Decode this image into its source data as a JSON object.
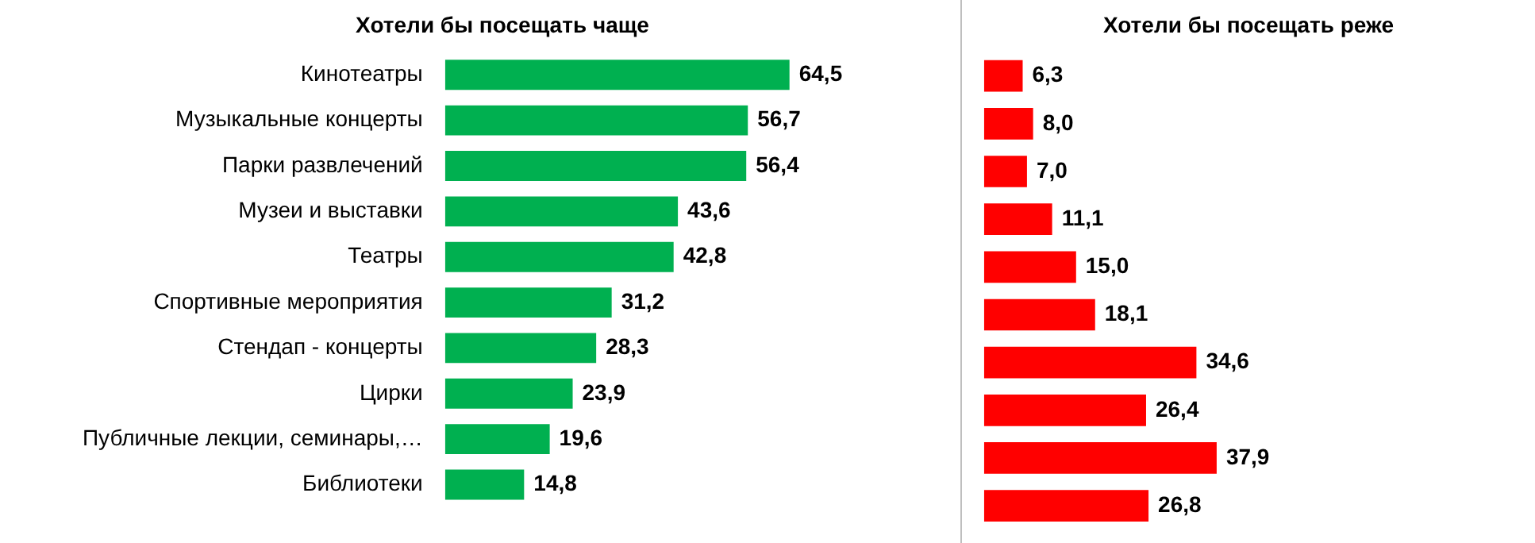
{
  "chart_data": [
    {
      "type": "bar",
      "orientation": "horizontal",
      "title": "Хотели бы посещать чаще",
      "categories": [
        "Кинотеатры",
        "Музыкальные концерты",
        "Парки развлечений",
        "Музеи и выставки",
        "Театры",
        "Спортивные мероприятия",
        "Стендап - концерты",
        "Цирки",
        "Публичные лекции, семинары,…",
        "Библиотеки"
      ],
      "values": [
        64.5,
        56.7,
        56.4,
        43.6,
        42.8,
        31.2,
        28.3,
        23.9,
        19.6,
        14.8
      ],
      "value_labels": [
        "64,5",
        "56,7",
        "56,4",
        "43,6",
        "42,8",
        "31,2",
        "28,3",
        "23,9",
        "19,6",
        "14,8"
      ],
      "color": "#00b050",
      "tick_labels": "y"
    },
    {
      "type": "bar",
      "orientation": "horizontal",
      "title": "Хотели бы посещать реже",
      "categories": [
        null,
        null,
        null,
        null,
        null,
        null,
        null,
        null,
        null,
        null
      ],
      "values": [
        6.3,
        8.0,
        7.0,
        11.1,
        15.0,
        18.1,
        34.6,
        26.4,
        37.9,
        26.8
      ],
      "value_labels": [
        "6,3",
        "8,0",
        "7,0",
        "11,1",
        "15,0",
        "18,1",
        "34,6",
        "26,4",
        "37,9",
        "26,8"
      ],
      "color": "#ff0000",
      "tick_labels": false
    }
  ]
}
